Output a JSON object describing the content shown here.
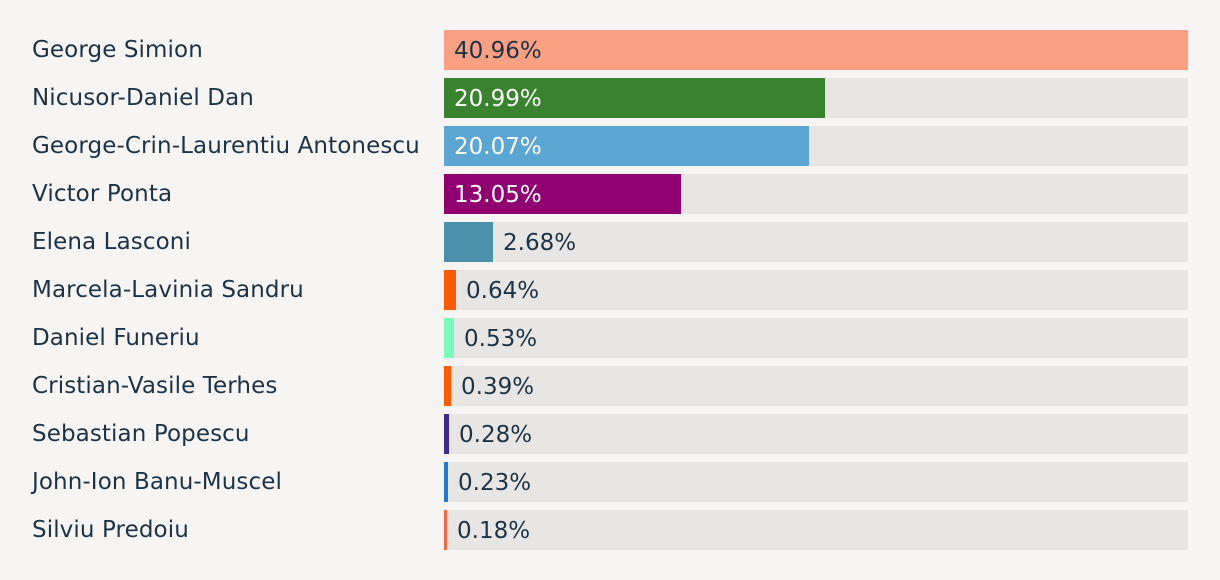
{
  "chart_data": {
    "type": "bar",
    "orientation": "horizontal",
    "title": "",
    "xlabel": "",
    "ylabel": "",
    "xlim": [
      0,
      40.96
    ],
    "value_suffix": "%",
    "categories": [
      "George Simion",
      "Nicusor-Daniel Dan",
      "George-Crin-Laurentiu Antonescu",
      "Victor Ponta",
      "Elena Lasconi",
      "Marcela-Lavinia Sandru",
      "Daniel Funeriu",
      "Cristian-Vasile Terhes",
      "Sebastian Popescu",
      "John-Ion Banu-Muscel",
      "Silviu Predoiu"
    ],
    "values": [
      40.96,
      20.99,
      20.07,
      13.05,
      2.68,
      0.64,
      0.53,
      0.39,
      0.28,
      0.23,
      0.18
    ],
    "labels": [
      "40.96%",
      "20.99%",
      "20.07%",
      "13.05%",
      "2.68%",
      "0.64%",
      "0.53%",
      "0.39%",
      "0.28%",
      "0.23%",
      "0.18%"
    ],
    "colors": [
      "#fca083",
      "#3a832e",
      "#5ca6d3",
      "#910070",
      "#4c92ad",
      "#ff5a00",
      "#78fbbb",
      "#ff5a00",
      "#3e2c8c",
      "#127ed9",
      "#f06b3c"
    ],
    "label_colors": [
      "#1c3345",
      "#ffffff",
      "#ffffff",
      "#ffffff",
      "#1c3345",
      "#1c3345",
      "#1c3345",
      "#1c3345",
      "#1c3345",
      "#1c3345",
      "#1c3345"
    ]
  }
}
